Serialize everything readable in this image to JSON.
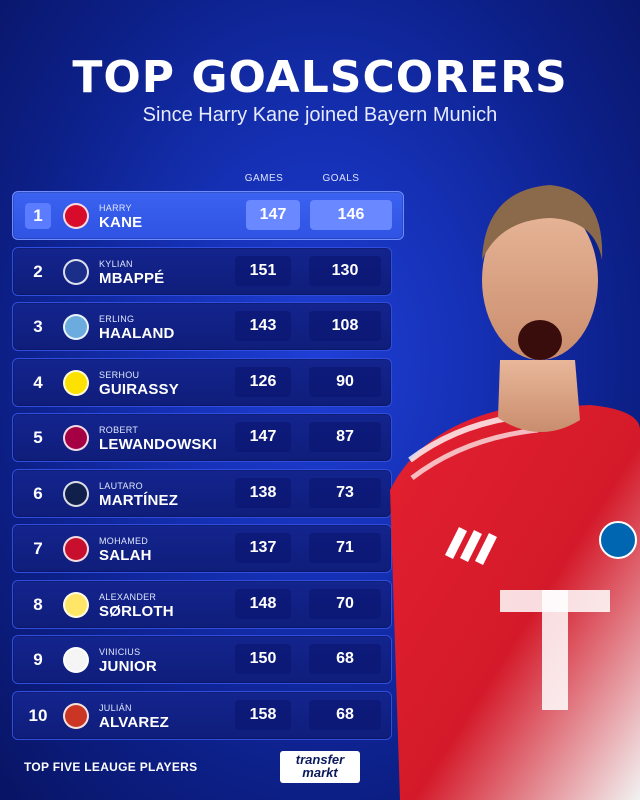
{
  "header": {
    "title": "TOP GOALSCORERS",
    "subtitle": "Since Harry Kane joined Bayern Munich"
  },
  "columns": {
    "games": "GAMES",
    "goals": "GOALS"
  },
  "rows": [
    {
      "rank": "1",
      "first": "HARRY",
      "last": "KANE",
      "games": "147",
      "goals": "146",
      "club_icon": "bayern-badge-icon",
      "badge_color": "#d80b2b"
    },
    {
      "rank": "2",
      "first": "KYLIAN",
      "last": "MBAPPÉ",
      "games": "151",
      "goals": "130",
      "club_icon": "psg-real-badge-icon",
      "badge_color": "#1b2f8a"
    },
    {
      "rank": "3",
      "first": "ERLING",
      "last": "HAALAND",
      "games": "143",
      "goals": "108",
      "club_icon": "man-city-badge-icon",
      "badge_color": "#6cabdd"
    },
    {
      "rank": "4",
      "first": "SERHOU",
      "last": "GUIRASSY",
      "games": "126",
      "goals": "90",
      "club_icon": "stuttgart-bvb-badge-icon",
      "badge_color": "#fde100"
    },
    {
      "rank": "5",
      "first": "ROBERT",
      "last": "LEWANDOWSKI",
      "games": "147",
      "goals": "87",
      "club_icon": "barcelona-badge-icon",
      "badge_color": "#a50044"
    },
    {
      "rank": "6",
      "first": "LAUTARO",
      "last": "MARTÍNEZ",
      "games": "138",
      "goals": "73",
      "club_icon": "inter-badge-icon",
      "badge_color": "#10204b"
    },
    {
      "rank": "7",
      "first": "MOHAMED",
      "last": "SALAH",
      "games": "137",
      "goals": "71",
      "club_icon": "liverpool-badge-icon",
      "badge_color": "#c8102e"
    },
    {
      "rank": "8",
      "first": "ALEXANDER",
      "last": "SØRLOTH",
      "games": "148",
      "goals": "70",
      "club_icon": "villarreal-atletico-badge-icon",
      "badge_color": "#ffe667"
    },
    {
      "rank": "9",
      "first": "VINICIUS",
      "last": "JUNIOR",
      "games": "150",
      "goals": "68",
      "club_icon": "real-madrid-badge-icon",
      "badge_color": "#f5f5f5"
    },
    {
      "rank": "10",
      "first": "JULIÁN",
      "last": "ALVAREZ",
      "games": "158",
      "goals": "68",
      "club_icon": "atletico-badge-icon",
      "badge_color": "#cb3524"
    }
  ],
  "footer": {
    "note": "TOP FIVE LEAUGE PLAYERS",
    "logo_line1": "transfer",
    "logo_line2": "markt"
  },
  "colors": {
    "background": "#1530b4",
    "row": "#0f1d7a",
    "row_highlight": "#3b62f0"
  }
}
